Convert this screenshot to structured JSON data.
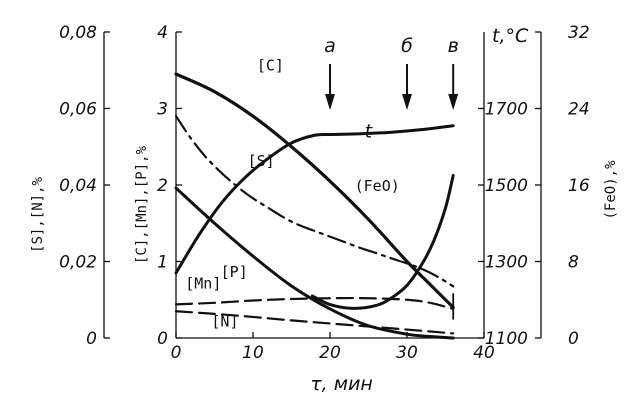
{
  "chart_data": {
    "type": "line",
    "xlabel": "τ, мин",
    "x_range": [
      0,
      40
    ],
    "x_ticks": [
      "0",
      "10",
      "20",
      "30",
      "40"
    ],
    "axes": {
      "left_outer": {
        "label": "[S],[N],%",
        "range": [
          0,
          0.08
        ],
        "ticks": [
          "0",
          "0,02",
          "0,04",
          "0,06",
          "0,08"
        ]
      },
      "left_inner": {
        "label": "[C],[Mn],[P],%",
        "range": [
          0,
          4
        ],
        "ticks": [
          "0",
          "1",
          "2",
          "3",
          "4"
        ]
      },
      "right_inner": {
        "label": "t,°C",
        "range": [
          1100,
          1900
        ],
        "ticks": [
          "1100",
          "1300",
          "1500",
          "1700"
        ]
      },
      "right_outer": {
        "label": "(FeO),%",
        "range": [
          0,
          32
        ],
        "ticks": [
          "0",
          "8",
          "16",
          "24",
          "32"
        ]
      }
    },
    "series": [
      {
        "name": "[C]",
        "axis": "left_inner",
        "style": "solid",
        "width": 3.2,
        "x": [
          0,
          5,
          10,
          15,
          20,
          25,
          30,
          33,
          36
        ],
        "y": [
          3.45,
          3.22,
          2.9,
          2.5,
          2.05,
          1.55,
          1.0,
          0.7,
          0.4
        ]
      },
      {
        "name": "[S]",
        "axis": "left_outer",
        "style": "dashdot",
        "width": 2.2,
        "x": [
          0,
          2,
          4,
          6,
          8,
          10,
          12,
          14,
          16,
          18,
          20,
          22,
          24,
          26,
          28,
          30,
          32,
          34,
          36
        ],
        "y": [
          0.058,
          0.052,
          0.047,
          0.043,
          0.0395,
          0.0365,
          0.034,
          0.0315,
          0.0295,
          0.028,
          0.0265,
          0.025,
          0.0235,
          0.0222,
          0.0208,
          0.0195,
          0.018,
          0.016,
          0.0135
        ]
      },
      {
        "name": "[P]",
        "axis": "left_inner",
        "style": "solid",
        "width": 3.0,
        "x": [
          0,
          5,
          10,
          15,
          20,
          25,
          30,
          33,
          36
        ],
        "y": [
          1.96,
          1.5,
          1.07,
          0.68,
          0.38,
          0.16,
          0.05,
          0.02,
          0.0
        ]
      },
      {
        "name": "[Mn]",
        "axis": "left_inner",
        "style": "dashed",
        "width": 2.2,
        "x": [
          0,
          5,
          10,
          15,
          20,
          25,
          30,
          33,
          36
        ],
        "y": [
          0.44,
          0.46,
          0.49,
          0.51,
          0.52,
          0.52,
          0.5,
          0.46,
          0.38
        ]
      },
      {
        "name": "[N]",
        "axis": "left_outer",
        "style": "dashed",
        "width": 2.2,
        "x": [
          0,
          5,
          10,
          15,
          20,
          25,
          30,
          33,
          36
        ],
        "y": [
          0.007,
          0.0063,
          0.0055,
          0.0046,
          0.0038,
          0.003,
          0.0022,
          0.0017,
          0.0012
        ]
      },
      {
        "name": "t",
        "axis": "right_inner",
        "style": "solid",
        "width": 3.0,
        "x": [
          0,
          3,
          6,
          9,
          12,
          15,
          18,
          20,
          24,
          28,
          32,
          36
        ],
        "y": [
          1270,
          1370,
          1455,
          1520,
          1570,
          1610,
          1630,
          1632,
          1634,
          1638,
          1645,
          1655
        ]
      },
      {
        "name": "(FeO)",
        "axis": "right_outer",
        "style": "solid",
        "width": 3.0,
        "x": [
          17.7,
          20,
          23,
          26,
          28,
          30,
          32,
          33.5,
          35,
          36
        ],
        "y": [
          4.4,
          3.5,
          3.1,
          3.4,
          4.2,
          5.5,
          7.8,
          10.2,
          13.6,
          17.0
        ]
      },
      {
        "name": "t_lower",
        "axis": "right_inner",
        "style": "solid",
        "width": 1.8,
        "x": [
          36,
          36
        ],
        "y": [
          1215,
          1150
        ]
      }
    ],
    "series_labels": [
      {
        "text": "[C]",
        "x": 10.5,
        "y_axis": "left_inner",
        "y": 3.5
      },
      {
        "text": "[S]",
        "x": 9.3,
        "y_axis": "left_inner",
        "y": 2.25
      },
      {
        "text": "[P]",
        "x": 5.8,
        "y_axis": "left_inner",
        "y": 0.8
      },
      {
        "text": "[Mn]",
        "x": 1.2,
        "y_axis": "left_inner",
        "y": 0.65
      },
      {
        "text": "[N]",
        "x": 4.6,
        "y_axis": "left_inner",
        "y": 0.15
      },
      {
        "text": "t",
        "x": 24.5,
        "y_axis": "left_inner",
        "y": 2.62
      },
      {
        "text": "(FeO)",
        "x": 23.2,
        "y_axis": "left_inner",
        "y": 1.92
      }
    ],
    "markers": [
      {
        "label": "a",
        "x": 20
      },
      {
        "label": "б",
        "x": 30
      },
      {
        "label": "в",
        "x": 36
      }
    ]
  }
}
